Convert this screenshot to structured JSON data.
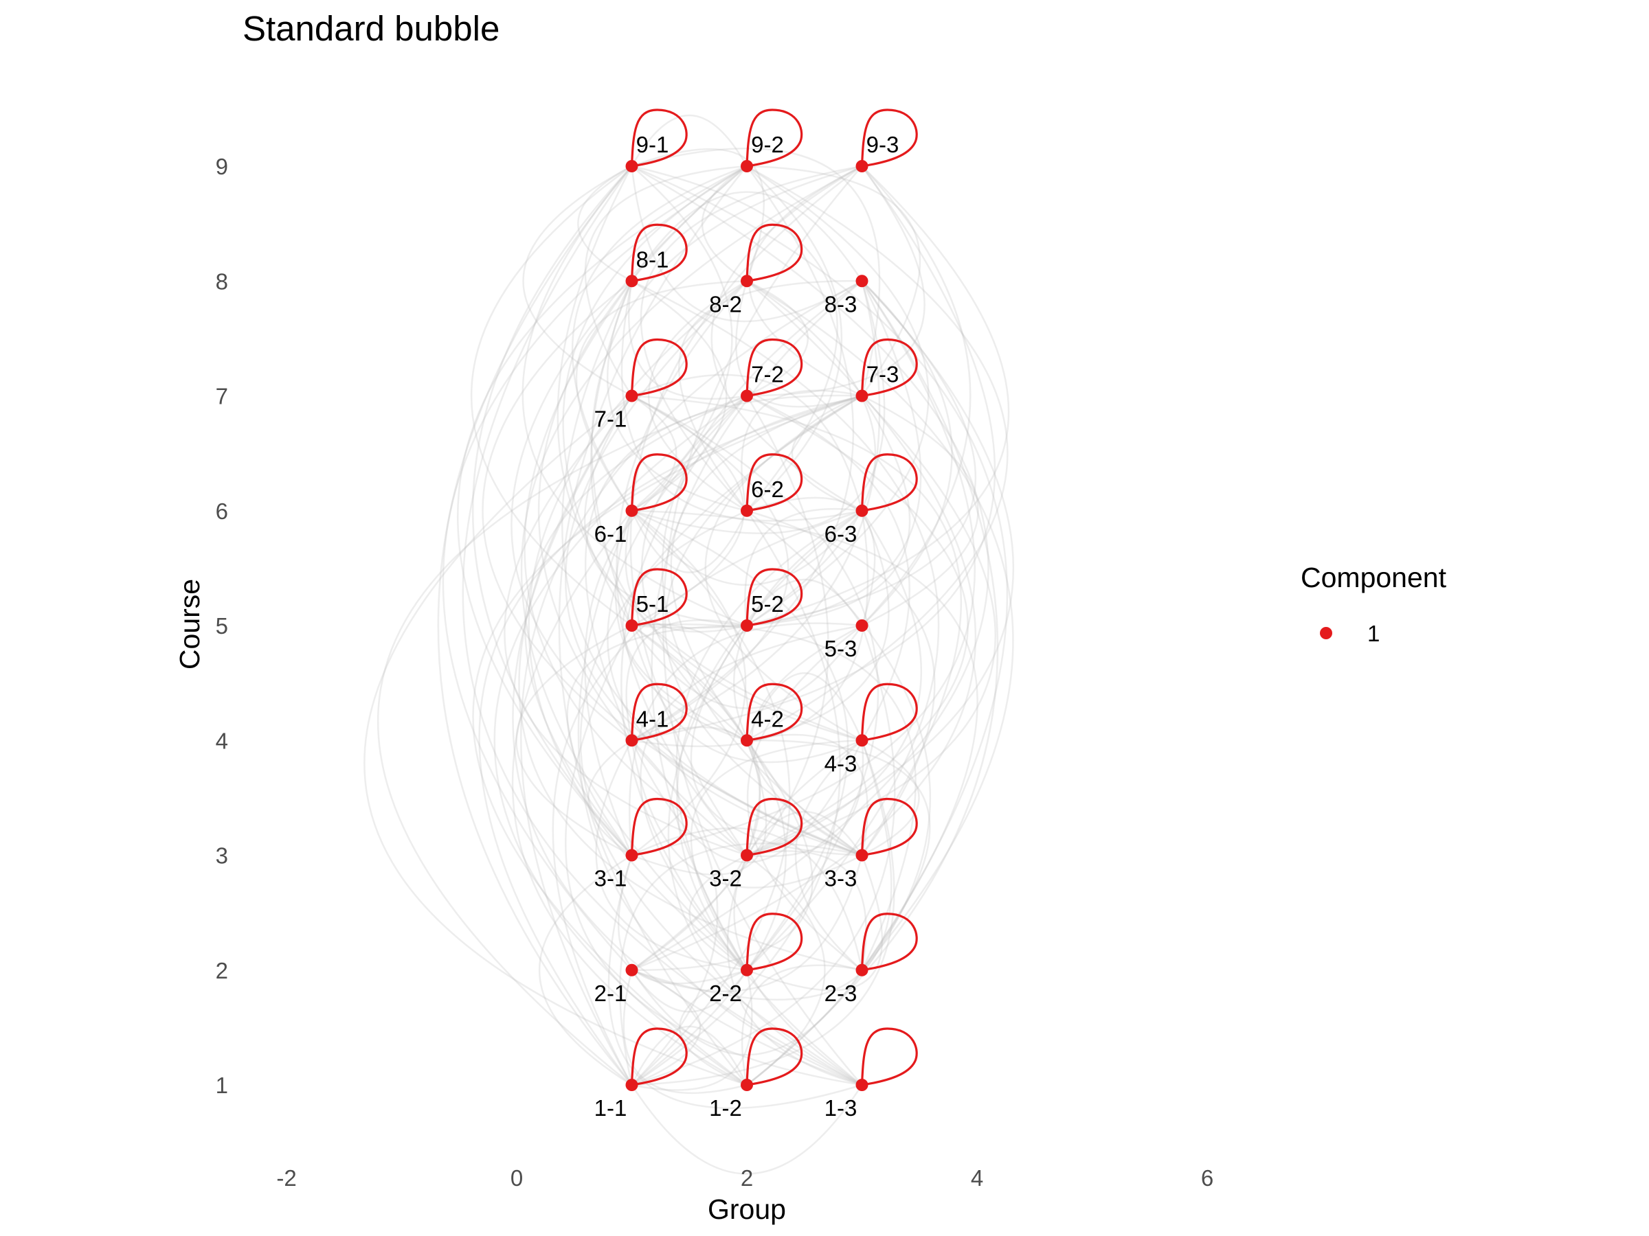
{
  "chart_data": {
    "type": "network",
    "title": "Standard bubble",
    "xlabel": "Group",
    "ylabel": "Course",
    "xlim": [
      -2.6,
      6.2
    ],
    "ylim": [
      0.6,
      9.8
    ],
    "x_ticks": [
      -2,
      0,
      2,
      4,
      6
    ],
    "y_ticks": [
      1,
      2,
      3,
      4,
      5,
      6,
      7,
      8,
      9
    ],
    "grid": false,
    "legend": {
      "title": "Component",
      "placement": "right",
      "entries": [
        {
          "label": "1",
          "color": "#e41a1c"
        }
      ]
    },
    "colors": {
      "node": "#e41a1c",
      "self_loop": "#e41a1c",
      "edge": "#bdbdbd"
    },
    "nodes": [
      {
        "id": "1-1",
        "x": 1,
        "y": 1,
        "label": "1-1",
        "label_pos": "below",
        "self_loop": true
      },
      {
        "id": "1-2",
        "x": 2,
        "y": 1,
        "label": "1-2",
        "label_pos": "below",
        "self_loop": true
      },
      {
        "id": "1-3",
        "x": 3,
        "y": 1,
        "label": "1-3",
        "label_pos": "below",
        "self_loop": true
      },
      {
        "id": "2-1",
        "x": 1,
        "y": 2,
        "label": "2-1",
        "label_pos": "below",
        "self_loop": false
      },
      {
        "id": "2-2",
        "x": 2,
        "y": 2,
        "label": "2-2",
        "label_pos": "below",
        "self_loop": true
      },
      {
        "id": "2-3",
        "x": 3,
        "y": 2,
        "label": "2-3",
        "label_pos": "below",
        "self_loop": true
      },
      {
        "id": "3-1",
        "x": 1,
        "y": 3,
        "label": "3-1",
        "label_pos": "below",
        "self_loop": true
      },
      {
        "id": "3-2",
        "x": 2,
        "y": 3,
        "label": "3-2",
        "label_pos": "below",
        "self_loop": true
      },
      {
        "id": "3-3",
        "x": 3,
        "y": 3,
        "label": "3-3",
        "label_pos": "below",
        "self_loop": true
      },
      {
        "id": "4-1",
        "x": 1,
        "y": 4,
        "label": "4-1",
        "label_pos": "above",
        "self_loop": true
      },
      {
        "id": "4-2",
        "x": 2,
        "y": 4,
        "label": "4-2",
        "label_pos": "above",
        "self_loop": true
      },
      {
        "id": "4-3",
        "x": 3,
        "y": 4,
        "label": "4-3",
        "label_pos": "below",
        "self_loop": true
      },
      {
        "id": "5-1",
        "x": 1,
        "y": 5,
        "label": "5-1",
        "label_pos": "above",
        "self_loop": true
      },
      {
        "id": "5-2",
        "x": 2,
        "y": 5,
        "label": "5-2",
        "label_pos": "above",
        "self_loop": true
      },
      {
        "id": "5-3",
        "x": 3,
        "y": 5,
        "label": "5-3",
        "label_pos": "below",
        "self_loop": false
      },
      {
        "id": "6-1",
        "x": 1,
        "y": 6,
        "label": "6-1",
        "label_pos": "below",
        "self_loop": true
      },
      {
        "id": "6-2",
        "x": 2,
        "y": 6,
        "label": "6-2",
        "label_pos": "above",
        "self_loop": true
      },
      {
        "id": "6-3",
        "x": 3,
        "y": 6,
        "label": "6-3",
        "label_pos": "below",
        "self_loop": true
      },
      {
        "id": "7-1",
        "x": 1,
        "y": 7,
        "label": "7-1",
        "label_pos": "below",
        "self_loop": true
      },
      {
        "id": "7-2",
        "x": 2,
        "y": 7,
        "label": "7-2",
        "label_pos": "above",
        "self_loop": true
      },
      {
        "id": "7-3",
        "x": 3,
        "y": 7,
        "label": "7-3",
        "label_pos": "above",
        "self_loop": true
      },
      {
        "id": "8-1",
        "x": 1,
        "y": 8,
        "label": "8-1",
        "label_pos": "above",
        "self_loop": true
      },
      {
        "id": "8-2",
        "x": 2,
        "y": 8,
        "label": "8-2",
        "label_pos": "below",
        "self_loop": true
      },
      {
        "id": "8-3",
        "x": 3,
        "y": 8,
        "label": "8-3",
        "label_pos": "below",
        "self_loop": false
      },
      {
        "id": "9-1",
        "x": 1,
        "y": 9,
        "label": "9-1",
        "label_pos": "above",
        "self_loop": true
      },
      {
        "id": "9-2",
        "x": 2,
        "y": 9,
        "label": "9-2",
        "label_pos": "above",
        "self_loop": true
      },
      {
        "id": "9-3",
        "x": 3,
        "y": 9,
        "label": "9-3",
        "label_pos": "above",
        "self_loop": true
      }
    ]
  }
}
